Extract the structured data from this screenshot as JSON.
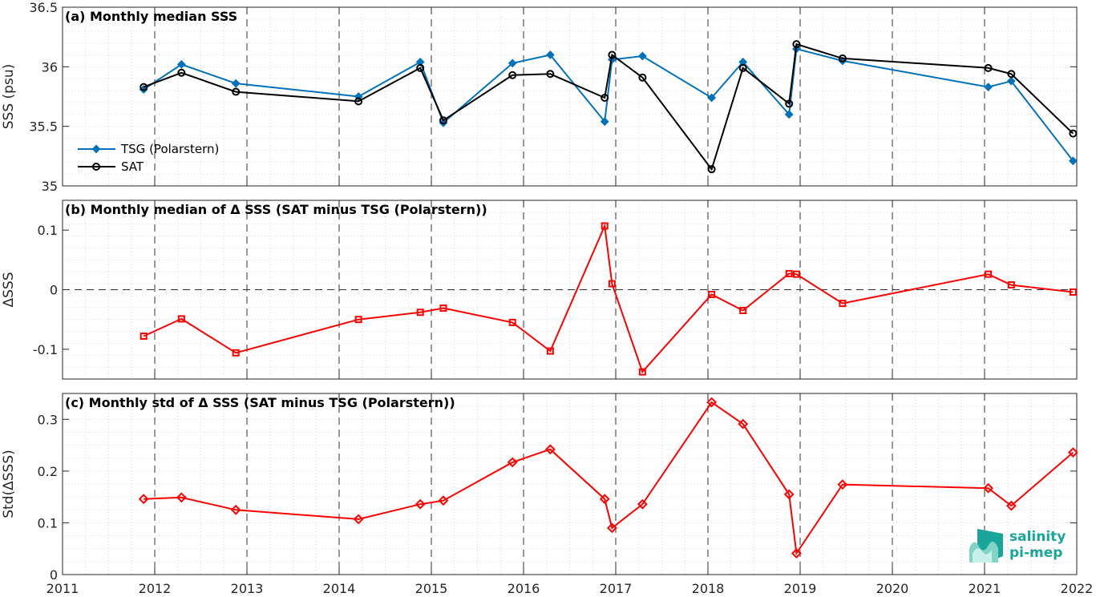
{
  "logo": {
    "line1": "salinity",
    "line2": "pi-mep"
  },
  "colors": {
    "tsg": "#0072BD",
    "sat": "#000000",
    "delta": "#ff0000",
    "logo": "#1aa59a"
  },
  "chart_data": [
    {
      "type": "line",
      "title": "(a) Monthly median SSS",
      "ylabel": "SSS (psu)",
      "xlim": [
        2011,
        2022
      ],
      "ylim": [
        35,
        36.5
      ],
      "xticks": [
        "2011",
        "2012",
        "2013",
        "2014",
        "2015",
        "2016",
        "2017",
        "2018",
        "2019",
        "2020",
        "2021",
        "2022"
      ],
      "yticks": [
        "35",
        "35.5",
        "36",
        "36.5"
      ],
      "grid": true,
      "legend": "center-left",
      "series": [
        {
          "name": "TSG (Polarstern)",
          "marker": "diamond",
          "x": [
            2011.88,
            2012.29,
            2012.88,
            2014.21,
            2014.88,
            2015.13,
            2015.88,
            2016.29,
            2016.88,
            2016.96,
            2017.29,
            2018.04,
            2018.38,
            2018.88,
            2018.96,
            2019.46,
            2021.04,
            2021.29,
            2021.96
          ],
          "y": [
            35.81,
            36.02,
            35.86,
            35.75,
            36.04,
            35.53,
            36.03,
            36.1,
            35.54,
            36.06,
            36.09,
            35.74,
            36.04,
            35.6,
            36.15,
            36.05,
            35.83,
            35.88,
            35.21
          ]
        },
        {
          "name": "SAT",
          "marker": "circle",
          "x": [
            2011.88,
            2012.29,
            2012.88,
            2014.21,
            2014.88,
            2015.13,
            2015.88,
            2016.29,
            2016.88,
            2016.96,
            2017.29,
            2018.04,
            2018.38,
            2018.88,
            2018.96,
            2019.46,
            2021.04,
            2021.29,
            2021.96
          ],
          "y": [
            35.83,
            35.95,
            35.79,
            35.71,
            35.99,
            35.55,
            35.93,
            35.94,
            35.74,
            36.1,
            35.91,
            35.14,
            35.99,
            35.69,
            36.19,
            36.07,
            35.99,
            35.94,
            35.44
          ]
        }
      ]
    },
    {
      "type": "line",
      "title": "(b) Monthly median of Δ SSS (SAT minus TSG (Polarstern))",
      "ylabel": "ΔSSS",
      "xlim": [
        2011,
        2022
      ],
      "ylim": [
        -0.15,
        0.15
      ],
      "yticks": [
        "-0.1",
        "0",
        "0.1"
      ],
      "zero_line": true,
      "grid": true,
      "series": [
        {
          "marker": "square",
          "x": [
            2011.88,
            2012.29,
            2012.88,
            2014.21,
            2014.88,
            2015.13,
            2015.88,
            2016.29,
            2016.88,
            2016.96,
            2017.29,
            2018.04,
            2018.38,
            2018.88,
            2018.96,
            2019.46,
            2021.04,
            2021.29,
            2021.96
          ],
          "y": [
            -0.078,
            -0.049,
            -0.106,
            -0.05,
            -0.038,
            -0.031,
            -0.055,
            -0.103,
            0.107,
            0.01,
            -0.138,
            -0.008,
            -0.035,
            0.027,
            0.026,
            -0.023,
            0.026,
            0.008,
            -0.004
          ]
        }
      ]
    },
    {
      "type": "line",
      "title": "(c) Monthly std of Δ SSS (SAT minus TSG (Polarstern))",
      "ylabel": "Std(ΔSSS)",
      "xlim": [
        2011,
        2022
      ],
      "ylim": [
        0,
        0.35
      ],
      "yticks": [
        "0",
        "0.1",
        "0.2",
        "0.3"
      ],
      "grid": true,
      "series": [
        {
          "marker": "diamond",
          "x": [
            2011.88,
            2012.29,
            2012.88,
            2014.21,
            2014.88,
            2015.13,
            2015.88,
            2016.29,
            2016.88,
            2016.96,
            2017.29,
            2018.04,
            2018.38,
            2018.88,
            2018.96,
            2019.46,
            2021.04,
            2021.29,
            2021.96
          ],
          "y": [
            0.146,
            0.149,
            0.125,
            0.107,
            0.136,
            0.143,
            0.217,
            0.242,
            0.146,
            0.09,
            0.136,
            0.333,
            0.291,
            0.155,
            0.041,
            0.174,
            0.167,
            0.133,
            0.236
          ]
        }
      ]
    }
  ]
}
